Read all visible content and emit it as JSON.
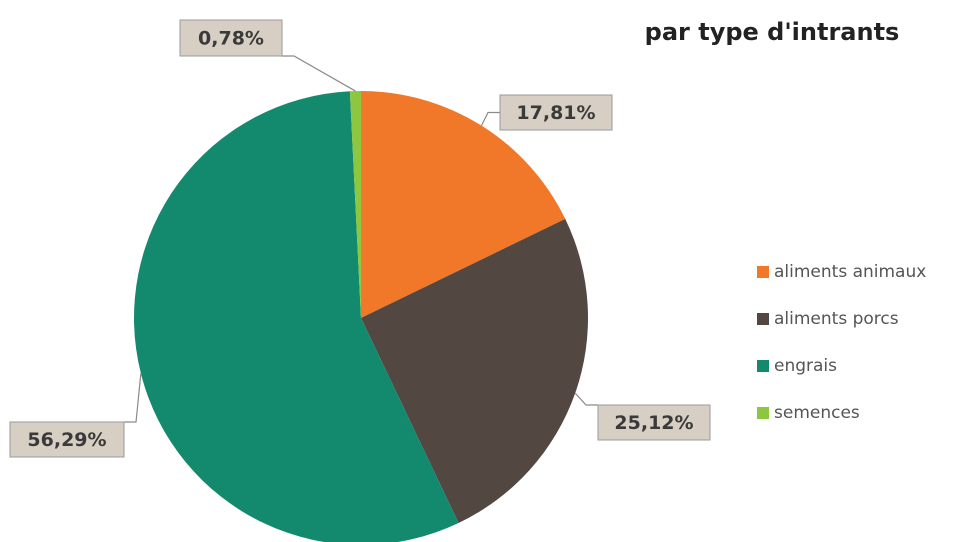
{
  "chart_data": {
    "type": "pie",
    "title": "par type d'intrants",
    "categories": [
      "aliments animaux",
      "aliments porcs",
      "engrais",
      "semences"
    ],
    "values": [
      17.81,
      25.12,
      56.29,
      0.78
    ],
    "value_labels": [
      "17,81%",
      "25,12%",
      "56,29%",
      "0,78%"
    ],
    "colors": [
      "#f07828",
      "#534741",
      "#138a6e",
      "#8dc63f"
    ],
    "legend": "right"
  }
}
